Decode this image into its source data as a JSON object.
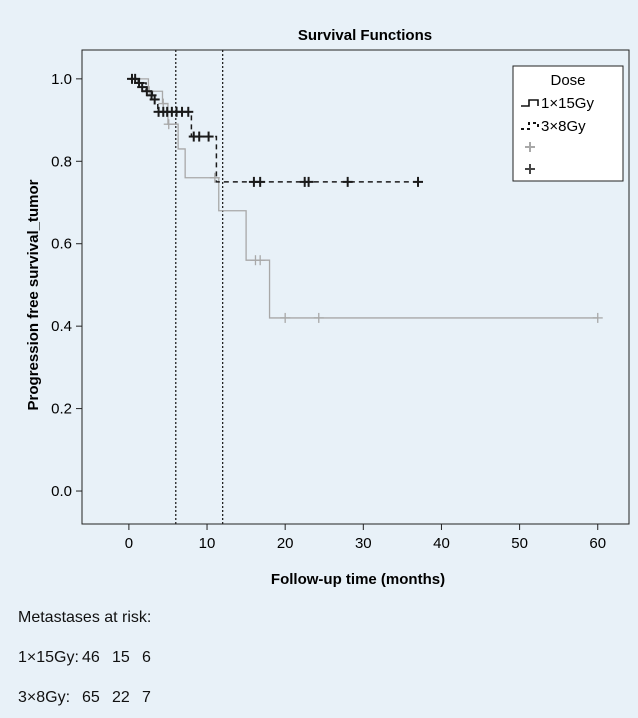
{
  "chart_data": {
    "type": "line",
    "title": "Survival Functions",
    "xlabel": "Follow-up time (months)",
    "ylabel": "Progression free survival_tumor",
    "xlim": [
      -6,
      64
    ],
    "ylim": [
      -0.08,
      1.07
    ],
    "xticks": [
      0,
      10,
      20,
      30,
      40,
      50,
      60
    ],
    "yticks": [
      0.0,
      0.2,
      0.4,
      0.6,
      0.8,
      1.0
    ],
    "ytick_labels": [
      "0.0",
      "0.2",
      "0.4",
      "0.6",
      "0.8",
      "1.0"
    ],
    "reference_lines_x": [
      6,
      12
    ],
    "legend": {
      "title": "Dose",
      "position": "top-right",
      "entries": [
        "1×15Gy",
        "3×8Gy",
        "",
        ""
      ]
    },
    "series": [
      {
        "name": "1×15Gy",
        "color": "#a8a8a8",
        "line_style": "solid",
        "steps": [
          [
            0,
            1.0
          ],
          [
            2.5,
            0.97
          ],
          [
            4.3,
            0.94
          ],
          [
            5.0,
            0.89
          ],
          [
            6.3,
            0.83
          ],
          [
            7.2,
            0.76
          ],
          [
            11.5,
            0.68
          ],
          [
            15.0,
            0.56
          ],
          [
            18.0,
            0.42
          ],
          [
            60,
            0.42
          ]
        ],
        "censored": [
          [
            2.6,
            0.97
          ],
          [
            4.4,
            0.94
          ],
          [
            5.1,
            0.89
          ],
          [
            11.0,
            0.76
          ],
          [
            16.2,
            0.56
          ],
          [
            16.8,
            0.56
          ],
          [
            20.0,
            0.42
          ],
          [
            24.3,
            0.42
          ],
          [
            60.0,
            0.42
          ]
        ]
      },
      {
        "name": "3×8Gy",
        "color": "#1a1a1a",
        "line_style": "dashed",
        "steps": [
          [
            0,
            1.0
          ],
          [
            1.2,
            0.99
          ],
          [
            2.2,
            0.97
          ],
          [
            3.0,
            0.95
          ],
          [
            3.7,
            0.92
          ],
          [
            8.0,
            0.86
          ],
          [
            11.2,
            0.75
          ],
          [
            37,
            0.75
          ]
        ],
        "censored": [
          [
            0.4,
            1.0
          ],
          [
            0.8,
            1.0
          ],
          [
            1.3,
            0.99
          ],
          [
            1.7,
            0.98
          ],
          [
            2.3,
            0.97
          ],
          [
            2.9,
            0.96
          ],
          [
            3.3,
            0.95
          ],
          [
            3.8,
            0.92
          ],
          [
            4.4,
            0.92
          ],
          [
            4.9,
            0.92
          ],
          [
            5.5,
            0.92
          ],
          [
            6.1,
            0.92
          ],
          [
            6.8,
            0.92
          ],
          [
            7.6,
            0.92
          ],
          [
            8.3,
            0.86
          ],
          [
            9.0,
            0.86
          ],
          [
            10.2,
            0.86
          ],
          [
            16.0,
            0.75
          ],
          [
            16.8,
            0.75
          ],
          [
            22.5,
            0.75
          ],
          [
            23.0,
            0.75
          ],
          [
            28.0,
            0.75
          ],
          [
            37.0,
            0.75
          ]
        ]
      }
    ]
  },
  "risk_table": {
    "title": "Metastases at risk:",
    "rows": [
      {
        "label": "1×15Gy:",
        "values": [
          "46",
          "15",
          "6"
        ]
      },
      {
        "label": "3×8Gy:",
        "values": [
          "65",
          "22",
          "7"
        ]
      }
    ]
  }
}
